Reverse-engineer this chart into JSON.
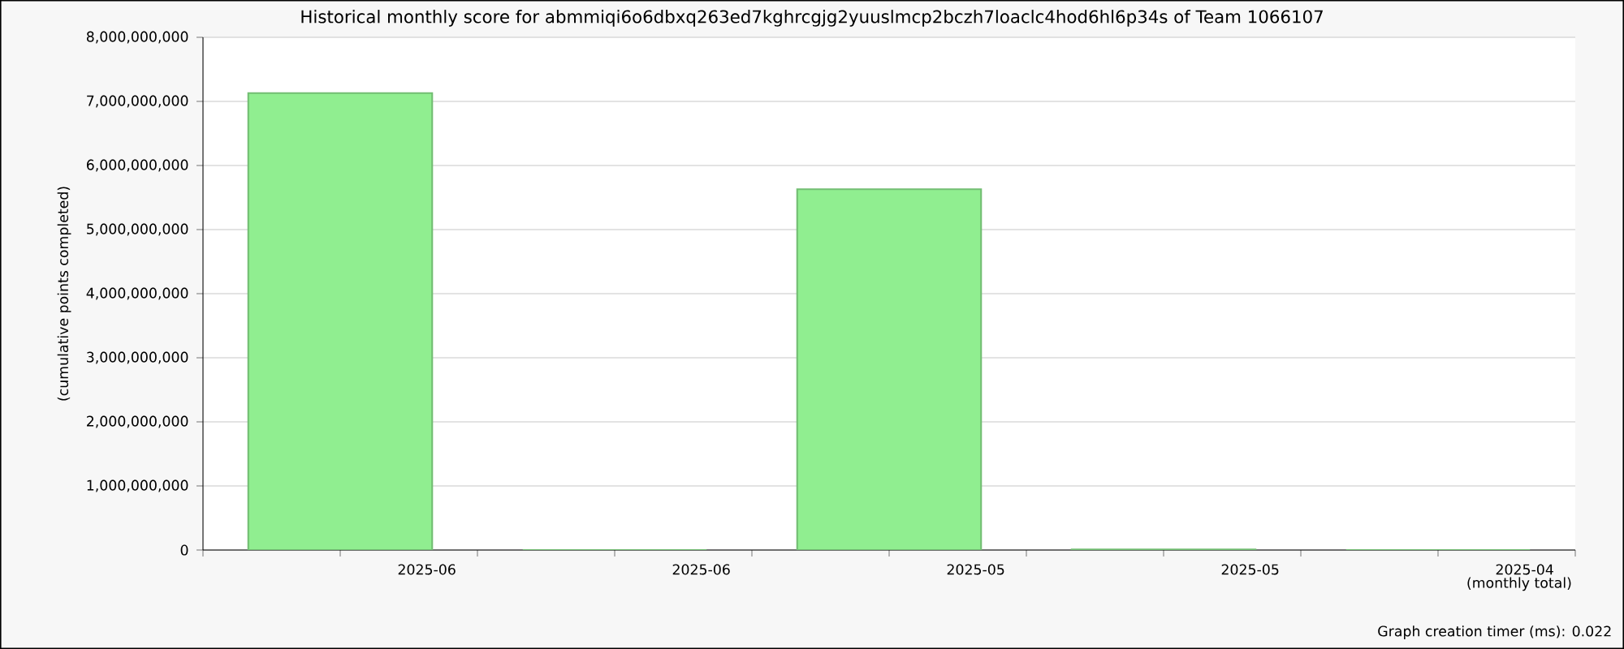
{
  "chart_data": {
    "type": "bar",
    "title": "Historical monthly score for abmmiqi6o6dbxq263ed7kghrcgjg2yuuslmcp2bczh7loaclc4hod6hl6p34s of Team 1066107",
    "ylabel": "(cumulative points completed)",
    "xlabel": "(monthly total)",
    "annotations": [
      "Graph creation timer (ms): 0.022"
    ],
    "categories": [
      "2025-06",
      "2025-06",
      "2025-05",
      "2025-05",
      "2025-04"
    ],
    "values": [
      7130000000,
      0,
      5630000000,
      10000000,
      0
    ],
    "color": "#90ee90",
    "ylim": [
      0,
      8000000000
    ],
    "yticks": [
      {
        "value": 0,
        "label": "0"
      },
      {
        "value": 1000000000,
        "label": "1,000,000,000"
      },
      {
        "value": 2000000000,
        "label": "2,000,000,000"
      },
      {
        "value": 3000000000,
        "label": "3,000,000,000"
      },
      {
        "value": 4000000000,
        "label": "4,000,000,000"
      },
      {
        "value": 5000000000,
        "label": "5,000,000,000"
      },
      {
        "value": 6000000000,
        "label": "6,000,000,000"
      },
      {
        "value": 7000000000,
        "label": "7,000,000,000"
      },
      {
        "value": 8000000000,
        "label": "8,000,000,000"
      }
    ],
    "grid": "y"
  }
}
